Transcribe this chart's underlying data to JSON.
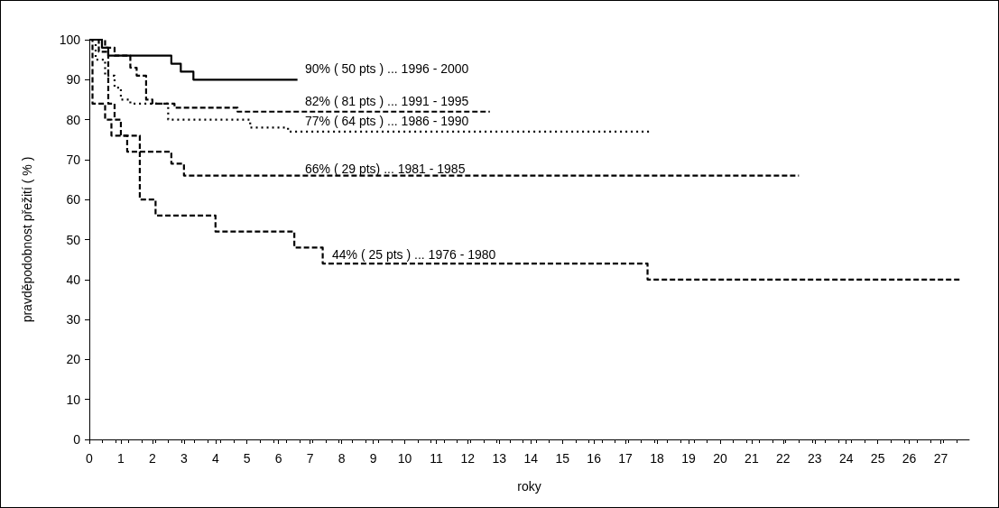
{
  "chart_data": {
    "type": "step",
    "xlabel": "roky",
    "ylabel": "pravděpodobnost přežití ( % )",
    "xlim": [
      0,
      27.9
    ],
    "xticks": [
      0,
      1,
      2,
      3,
      4,
      5,
      6,
      7,
      8,
      9,
      10,
      11,
      12,
      13,
      14,
      15,
      16,
      17,
      18,
      19,
      20,
      21,
      22,
      23,
      24,
      25,
      26,
      27
    ],
    "ylim": [
      0,
      100
    ],
    "yticks": [
      0,
      10,
      20,
      30,
      40,
      50,
      60,
      70,
      80,
      90,
      100
    ],
    "grid": false,
    "marker": "none",
    "series": [
      {
        "color": "#000000",
        "line_style": "solid",
        "x": [
          0,
          0.4,
          0.6,
          2.6,
          2.9,
          3.3,
          6.6
        ],
        "values": [
          100,
          98,
          96,
          94,
          92,
          90,
          90
        ]
      },
      {
        "color": "#000000",
        "line_style": "dashed",
        "x": [
          0,
          0.5,
          0.8,
          1.3,
          1.5,
          1.8,
          2.0,
          2.7,
          4.7,
          12.7
        ],
        "values": [
          100,
          98,
          96,
          93,
          91,
          85,
          84,
          83,
          82,
          82
        ]
      },
      {
        "color": "#000000",
        "line_style": "dotted",
        "x": [
          0,
          0.2,
          0.5,
          0.8,
          1.0,
          1.3,
          2.5,
          5.1,
          6.3,
          17.8
        ],
        "values": [
          100,
          95,
          91,
          88,
          85,
          84,
          80,
          78,
          77,
          77
        ]
      },
      {
        "color": "#000000",
        "line_style": "dashed",
        "x": [
          0,
          0.3,
          0.6,
          0.8,
          1.0,
          1.2,
          2.6,
          3.0,
          22.5
        ],
        "values": [
          100,
          97,
          84,
          80,
          76,
          72,
          69,
          66,
          66
        ]
      },
      {
        "color": "#000000",
        "line_style": "dashed",
        "x": [
          0,
          0.1,
          0.5,
          0.7,
          1.6,
          2.1,
          4.0,
          6.5,
          7.4,
          17.7,
          27.6
        ],
        "values": [
          100,
          84,
          80,
          76,
          60,
          56,
          52,
          48,
          44,
          40,
          40
        ]
      }
    ],
    "annotations": [
      "90% ( 50 pts ) ... 1996 - 2000",
      "82% ( 81 pts ) ... 1991 - 1995",
      "77% ( 64 pts ) ... 1986 - 1990",
      "66% ( 29 pts) ... 1981 - 1985",
      "44% ( 25 pts ) ... 1976 - 1980"
    ]
  }
}
